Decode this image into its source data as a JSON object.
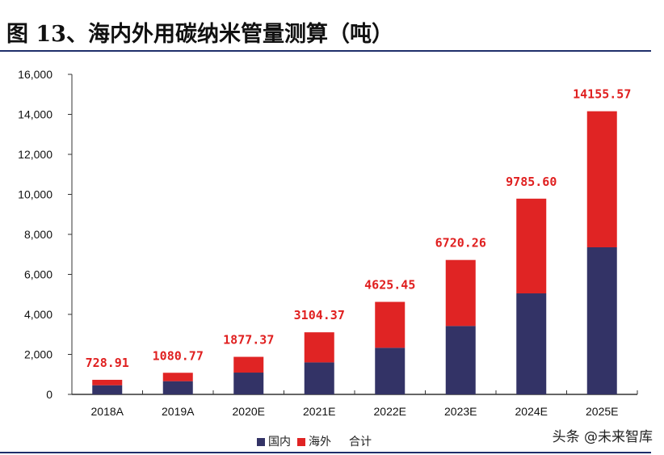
{
  "title": "图 13、海内外用碳纳米管量测算（吨）",
  "watermark": "头条 @未来智库",
  "chart_data": {
    "type": "bar",
    "stacked": true,
    "categories": [
      "2018A",
      "2019A",
      "2020E",
      "2021E",
      "2022E",
      "2023E",
      "2024E",
      "2025E"
    ],
    "series": [
      {
        "name": "国内",
        "color": "#333366",
        "values": [
          457,
          660,
          1090,
          1600,
          2330,
          3420,
          5050,
          7354
        ]
      },
      {
        "name": "海外",
        "color": "#e02424",
        "values": [
          271.91,
          420.77,
          787.37,
          1504.37,
          2295.45,
          3300.26,
          4735.6,
          6801.57
        ]
      }
    ],
    "totals": {
      "name": "合计",
      "labels": [
        "728.91",
        "1080.77",
        "1877.37",
        "3104.37",
        "4625.45",
        "6720.26",
        "9785.60",
        "14155.57"
      ]
    },
    "ylim": [
      0,
      16000
    ],
    "yticks": [
      "0",
      "2,000",
      "4,000",
      "6,000",
      "8,000",
      "10,000",
      "12,000",
      "14,000",
      "16,000"
    ],
    "grid": false,
    "legend_position": "bottom"
  }
}
